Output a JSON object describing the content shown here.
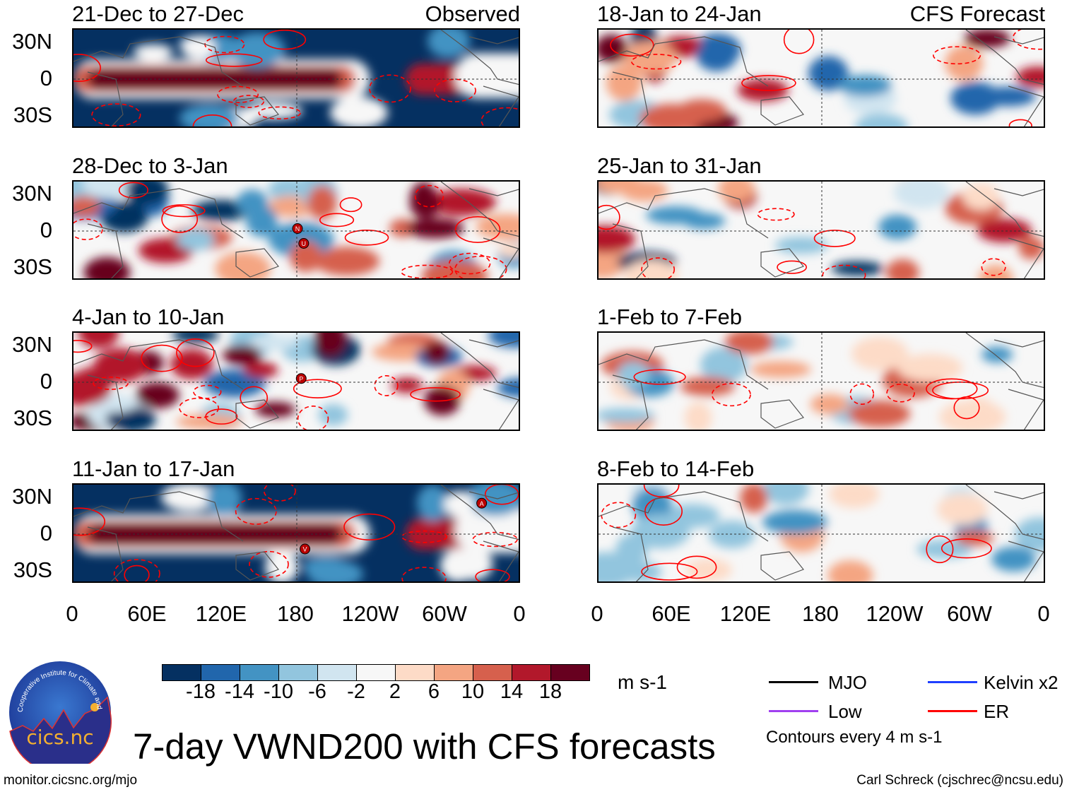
{
  "chart_data": {
    "type": "heatmap",
    "title": "7-day VWND200 with CFS forecasts",
    "units": "m s-1",
    "columns": [
      {
        "label": "Observed"
      },
      {
        "label": "CFS Forecast"
      }
    ],
    "panels": [
      {
        "title": "21-Dec to 27-Dec",
        "column": "Observed",
        "markers": []
      },
      {
        "title": "28-Dec to 3-Jan",
        "column": "Observed",
        "markers": [
          {
            "label": "N",
            "lon": 180,
            "lat": 2
          },
          {
            "label": "U",
            "lon": 185,
            "lat": -10
          }
        ]
      },
      {
        "title": "4-Jan to 10-Jan",
        "column": "Observed",
        "markers": [
          {
            "label": "P",
            "lon": 183,
            "lat": 3
          }
        ]
      },
      {
        "title": "11-Jan to 17-Jan",
        "column": "Observed",
        "markers": [
          {
            "label": "A",
            "lon": 328,
            "lat": 25
          },
          {
            "label": "V",
            "lon": 186,
            "lat": -12
          }
        ]
      },
      {
        "title": "18-Jan to 24-Jan",
        "column": "CFS Forecast",
        "markers": []
      },
      {
        "title": "25-Jan to 31-Jan",
        "column": "CFS Forecast",
        "markers": []
      },
      {
        "title": "1-Feb to 7-Feb",
        "column": "CFS Forecast",
        "markers": []
      },
      {
        "title": "8-Feb to 14-Feb",
        "column": "CFS Forecast",
        "markers": []
      }
    ],
    "y_ticks": [
      "30N",
      "0",
      "30S"
    ],
    "x_ticks": [
      "0",
      "60E",
      "120E",
      "180",
      "120W",
      "60W",
      "0"
    ],
    "colorbar": {
      "colors": [
        "#053061",
        "#2166ac",
        "#4393c3",
        "#92c5de",
        "#d1e5f0",
        "#f7f7f7",
        "#fddbc7",
        "#f4a582",
        "#d6604d",
        "#b2182b",
        "#67001f"
      ],
      "labels": [
        "-18",
        "-14",
        "-10",
        "-6",
        "-2",
        "2",
        "6",
        "10",
        "14",
        "18"
      ]
    }
  },
  "legend": {
    "items": [
      {
        "label": "MJO",
        "color": "#000000"
      },
      {
        "label": "Kelvin x2",
        "color": "#1f3fff"
      },
      {
        "label": "Low",
        "color": "#a040f0"
      },
      {
        "label": "ER",
        "color": "#ff0000"
      }
    ],
    "note": "Contours every 4 m s-1"
  },
  "logo": {
    "text": "cics.nc",
    "ring": "Cooperative Institute for Climate and Satellites"
  },
  "footer": {
    "url": "monitor.cicsnc.org/mjo",
    "credit": "Carl Schreck (cjschrec@ncsu.edu)"
  }
}
